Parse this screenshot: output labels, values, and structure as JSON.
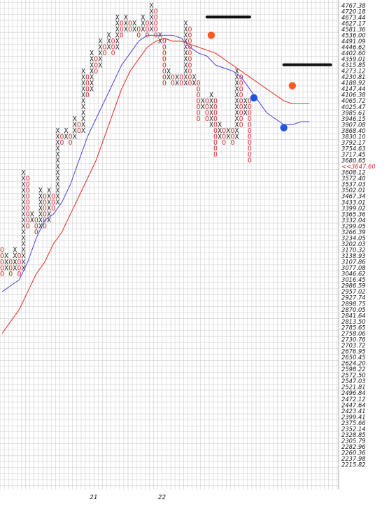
{
  "chart_data": {
    "type": "point-and-figure",
    "x_labels": [
      {
        "col": 21,
        "label": "21"
      },
      {
        "col": 37,
        "label": "22"
      }
    ],
    "price_levels": [
      "4767.38",
      "4720.18",
      "4673.44",
      "4627.17",
      "4581.36",
      "4536.00",
      "4491.09",
      "4446.62",
      "4402.60",
      "4359.01",
      "4315.85",
      "4273.12",
      "4230.81",
      "4188.92",
      "4147.44",
      "4106.38",
      "4065.72",
      "4025.47",
      "3985.61",
      "3946.15",
      "3907.08",
      "3868.40",
      "3830.10",
      "3792.17",
      "3754.63",
      "3717.45",
      "3680.65",
      "3647.60",
      "3608.12",
      "3572.40",
      "3537.03",
      "3502.01",
      "3467.34",
      "3433.01",
      "3399.02",
      "3365.36",
      "3332.04",
      "3299.05",
      "3266.39",
      "3234.05",
      "3202.03",
      "3170.32",
      "3138.93",
      "3107.86",
      "3077.08",
      "3046.62",
      "3016.45",
      "2986.59",
      "2957.02",
      "2927.74",
      "2898.75",
      "2870.05",
      "2841.64",
      "2813.50",
      "2785.65",
      "2758.06",
      "2730.76",
      "2703.72",
      "2676.95",
      "2650.45",
      "2624.20",
      "2598.22",
      "2572.50",
      "2547.03",
      "2521.81",
      "2496.84",
      "2472.12",
      "2447.64",
      "2423.41",
      "2399.41",
      "2375.66",
      "2352.14",
      "2328.85",
      "2305.79",
      "2282.96",
      "2260.36",
      "2237.98",
      "2215.82"
    ],
    "last_price_label": "<<3647.60",
    "columns": [
      {
        "type": "O",
        "top": 3170.32,
        "bottom": 3046.62
      },
      {
        "type": "X",
        "top": 3138.93,
        "bottom": 3077.08
      },
      {
        "type": "O",
        "top": 3107.86,
        "bottom": 3046.62
      },
      {
        "type": "X",
        "top": 3170.32,
        "bottom": 3077.08
      },
      {
        "type": "O",
        "top": 3138.93,
        "bottom": 3046.62
      },
      {
        "type": "X",
        "top": 3608.12,
        "bottom": 3077.08
      },
      {
        "type": "O",
        "top": 3572.4,
        "bottom": 3299.05
      },
      {
        "type": "X",
        "top": 3365.36,
        "bottom": 3332.04
      },
      {
        "type": "O",
        "top": 3332.04,
        "bottom": 3266.39
      },
      {
        "type": "X",
        "top": 3502.01,
        "bottom": 3299.05
      },
      {
        "type": "O",
        "top": 3467.34,
        "bottom": 3299.05
      },
      {
        "type": "X",
        "top": 3502.01,
        "bottom": 3332.04
      },
      {
        "type": "O",
        "top": 3467.34,
        "bottom": 3399.02
      },
      {
        "type": "X",
        "top": 3868.4,
        "bottom": 3433.01
      },
      {
        "type": "O",
        "top": 3830.1,
        "bottom": 3792.17
      },
      {
        "type": "X",
        "top": 3868.4,
        "bottom": 3830.1
      },
      {
        "type": "O",
        "top": 3830.1,
        "bottom": 3792.17
      },
      {
        "type": "X",
        "top": 3946.15,
        "bottom": 3830.1
      },
      {
        "type": "O",
        "top": 3907.08,
        "bottom": 3868.4
      },
      {
        "type": "X",
        "top": 4273.12,
        "bottom": 3868.4
      },
      {
        "type": "O",
        "top": 4230.81,
        "bottom": 4106.38
      },
      {
        "type": "X",
        "top": 4402.6,
        "bottom": 4147.44
      },
      {
        "type": "O",
        "top": 4359.01,
        "bottom": 4273.12
      },
      {
        "type": "X",
        "top": 4491.09,
        "bottom": 4315.85
      },
      {
        "type": "O",
        "top": 4446.62,
        "bottom": 4402.6
      },
      {
        "type": "X",
        "top": 4536.0,
        "bottom": 4446.62
      },
      {
        "type": "O",
        "top": 4491.09,
        "bottom": 4402.6
      },
      {
        "type": "X",
        "top": 4673.44,
        "bottom": 4446.62
      },
      {
        "type": "O",
        "top": 4627.17,
        "bottom": 4536.0
      },
      {
        "type": "X",
        "top": 4673.44,
        "bottom": 4581.36
      },
      {
        "type": "O",
        "top": 4627.17,
        "bottom": 4581.36
      },
      {
        "type": "X",
        "top": 4627.17,
        "bottom": 4581.36
      },
      {
        "type": "O",
        "top": 4581.36,
        "bottom": 4536.0
      },
      {
        "type": "X",
        "top": 4673.44,
        "bottom": 4581.36
      },
      {
        "type": "O",
        "top": 4627.17,
        "bottom": 4536.0
      },
      {
        "type": "X",
        "top": 4767.38,
        "bottom": 4581.36
      },
      {
        "type": "O",
        "top": 4720.18,
        "bottom": 4536.0
      },
      {
        "type": "X",
        "top": 4536.0,
        "bottom": 4491.09
      },
      {
        "type": "O",
        "top": 4491.09,
        "bottom": 4188.92
      },
      {
        "type": "X",
        "top": 4273.12,
        "bottom": 4230.81
      },
      {
        "type": "O",
        "top": 4230.81,
        "bottom": 4188.92
      },
      {
        "type": "X",
        "top": 4230.81,
        "bottom": 4188.92
      },
      {
        "type": "O",
        "top": 4230.81,
        "bottom": 4188.92
      },
      {
        "type": "X",
        "top": 4627.17,
        "bottom": 4188.92
      },
      {
        "type": "O",
        "top": 4581.36,
        "bottom": 4188.92
      },
      {
        "type": "X",
        "top": 4230.81,
        "bottom": 4188.92
      },
      {
        "type": "O",
        "top": 4188.92,
        "bottom": 3946.15
      },
      {
        "type": "X",
        "top": 4065.72,
        "bottom": 4025.47
      },
      {
        "type": "O",
        "top": 4065.72,
        "bottom": 3946.15
      },
      {
        "type": "X",
        "top": 4106.38,
        "bottom": 3907.08
      },
      {
        "type": "O",
        "top": 4065.72,
        "bottom": 3717.45
      },
      {
        "type": "X",
        "top": 3907.08,
        "bottom": 3830.1
      },
      {
        "type": "O",
        "top": 3868.4,
        "bottom": 3792.17
      },
      {
        "type": "X",
        "top": 3868.4,
        "bottom": 3830.1
      },
      {
        "type": "O",
        "top": 3868.4,
        "bottom": 3792.17
      },
      {
        "type": "X",
        "top": 4273.12,
        "bottom": 3830.1
      },
      {
        "type": "O",
        "top": 4230.81,
        "bottom": 3907.08
      },
      {
        "type": "X",
        "top": 4065.72,
        "bottom": 3985.61
      },
      {
        "type": "O",
        "top": 4065.72,
        "bottom": 3680.65
      }
    ],
    "series": [
      {
        "color": "#5b4fe0",
        "points": [
          [
            0,
            2957.02
          ],
          [
            2,
            2986.59
          ],
          [
            4,
            3016.45
          ],
          [
            6,
            3107.86
          ],
          [
            8,
            3234.05
          ],
          [
            10,
            3332.04
          ],
          [
            12,
            3365.36
          ],
          [
            14,
            3433.01
          ],
          [
            16,
            3537.03
          ],
          [
            18,
            3680.65
          ],
          [
            20,
            3830.1
          ],
          [
            22,
            3946.15
          ],
          [
            24,
            4065.72
          ],
          [
            26,
            4188.92
          ],
          [
            28,
            4315.85
          ],
          [
            30,
            4402.6
          ],
          [
            32,
            4491.09
          ],
          [
            34,
            4536.0
          ],
          [
            36,
            4536.0
          ],
          [
            38,
            4536.0
          ],
          [
            40,
            4536.0
          ],
          [
            42,
            4513.55
          ],
          [
            44,
            4446.62
          ],
          [
            46,
            4402.6
          ],
          [
            48,
            4381.0
          ],
          [
            50,
            4315.85
          ],
          [
            52,
            4294.5
          ],
          [
            54,
            4273.12
          ],
          [
            56,
            4230.81
          ],
          [
            58,
            4147.44
          ],
          [
            60,
            4065.72
          ],
          [
            62,
            3985.61
          ],
          [
            64,
            3946.15
          ],
          [
            66,
            3907.08
          ],
          [
            68,
            3907.08
          ],
          [
            70,
            3926.6
          ],
          [
            72,
            3926.6
          ]
        ]
      },
      {
        "color": "#e53935",
        "points": [
          [
            0,
            2758.06
          ],
          [
            2,
            2813.5
          ],
          [
            4,
            2870.05
          ],
          [
            6,
            2957.02
          ],
          [
            8,
            3046.62
          ],
          [
            10,
            3107.86
          ],
          [
            12,
            3202.03
          ],
          [
            14,
            3266.39
          ],
          [
            16,
            3365.36
          ],
          [
            18,
            3467.34
          ],
          [
            20,
            3572.4
          ],
          [
            22,
            3680.65
          ],
          [
            24,
            3830.1
          ],
          [
            26,
            3985.61
          ],
          [
            28,
            4147.44
          ],
          [
            30,
            4273.12
          ],
          [
            32,
            4359.01
          ],
          [
            34,
            4446.62
          ],
          [
            36,
            4491.09
          ],
          [
            38,
            4513.55
          ],
          [
            40,
            4491.09
          ],
          [
            42,
            4491.09
          ],
          [
            44,
            4468.8
          ],
          [
            46,
            4446.62
          ],
          [
            48,
            4424.6
          ],
          [
            50,
            4402.6
          ],
          [
            52,
            4359.01
          ],
          [
            54,
            4315.85
          ],
          [
            56,
            4273.12
          ],
          [
            58,
            4230.81
          ],
          [
            60,
            4188.92
          ],
          [
            62,
            4147.44
          ],
          [
            64,
            4106.38
          ],
          [
            66,
            4065.72
          ],
          [
            68,
            4045.6
          ],
          [
            70,
            4045.6
          ],
          [
            72,
            4045.6
          ]
        ]
      }
    ],
    "markers": [
      {
        "color": "#ff5722",
        "col": 49,
        "price": 4536.0
      },
      {
        "color": "#ff5722",
        "col": 68,
        "price": 4170.0
      },
      {
        "color": "#1e56e0",
        "col": 59,
        "price": 4085.9
      },
      {
        "color": "#1e56e0",
        "col": 66,
        "price": 3887.7
      }
    ],
    "annotation_lines": [
      {
        "color": "#111111",
        "from_col": 48,
        "to_col": 58,
        "price": 4676.0
      },
      {
        "color": "#111111",
        "from_col": 66,
        "to_col": 77,
        "price": 4318.0
      }
    ]
  }
}
